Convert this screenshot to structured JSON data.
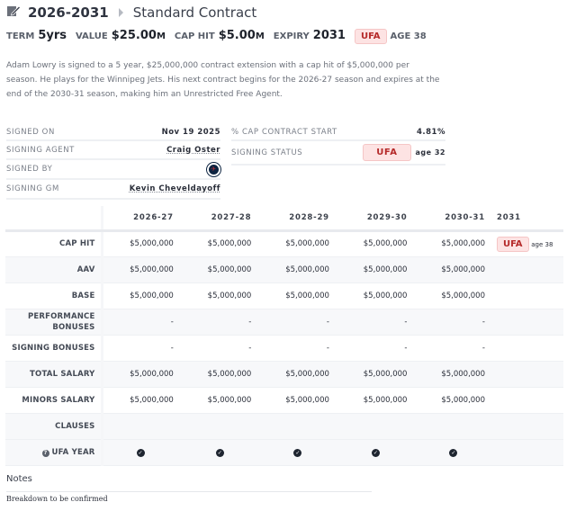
{
  "header": {
    "years": "2026-2031",
    "contract_type": "Standard Contract"
  },
  "summary": {
    "term_label": "TERM",
    "term": "5yrs",
    "value_label": "VALUE",
    "value": "$25.00",
    "value_unit": "M",
    "cap_label": "CAP HIT",
    "cap": "$5.00",
    "cap_unit": "M",
    "expiry_label": "EXPIRY",
    "expiry": "2031",
    "status": "UFA",
    "age": "AGE 38"
  },
  "description": "Adam Lowry is signed to a 5 year, $25,000,000 contract extension with a cap hit of $5,000,000 per season. He plays for the Winnipeg Jets. His next contract begins for the 2026-27 season and expires at the end of the 2030-31 season, making him an Unrestricted Free Agent.",
  "details_left": [
    {
      "label": "SIGNED ON",
      "value": "Nov 19 2025"
    },
    {
      "label": "SIGNING AGENT",
      "value": "Craig Oster"
    },
    {
      "label": "SIGNED BY",
      "value": ""
    },
    {
      "label": "SIGNING GM",
      "value": "Kevin Cheveldayoff"
    }
  ],
  "details_right": {
    "cap_pct_label": "% CAP CONTRACT START",
    "cap_pct": "4.81%",
    "status_label": "SIGNING STATUS",
    "status": "UFA",
    "status_age": "age 32"
  },
  "table": {
    "columns": [
      "2026-27",
      "2027-28",
      "2028-29",
      "2029-30",
      "2030-31",
      "2031"
    ],
    "ufa_badge": "UFA",
    "ufa_age": "age 38",
    "rows": [
      {
        "label": "CAP HIT",
        "values": [
          "$5,000,000",
          "$5,000,000",
          "$5,000,000",
          "$5,000,000",
          "$5,000,000"
        ]
      },
      {
        "label": "AAV",
        "values": [
          "$5,000,000",
          "$5,000,000",
          "$5,000,000",
          "$5,000,000",
          "$5,000,000"
        ]
      },
      {
        "label": "BASE",
        "values": [
          "$5,000,000",
          "$5,000,000",
          "$5,000,000",
          "$5,000,000",
          "$5,000,000"
        ]
      },
      {
        "label": "PERFORMANCE BONUSES",
        "values": [
          "-",
          "-",
          "-",
          "-",
          "-"
        ]
      },
      {
        "label": "SIGNING BONUSES",
        "values": [
          "-",
          "-",
          "-",
          "-",
          "-"
        ]
      },
      {
        "label": "TOTAL SALARY",
        "values": [
          "$5,000,000",
          "$5,000,000",
          "$5,000,000",
          "$5,000,000",
          "$5,000,000"
        ]
      },
      {
        "label": "MINORS SALARY",
        "values": [
          "$5,000,000",
          "$5,000,000",
          "$5,000,000",
          "$5,000,000",
          "$5,000,000"
        ]
      },
      {
        "label": "CLAUSES",
        "values": [
          "",
          "",
          "",
          "",
          ""
        ]
      }
    ],
    "ufa_year_label": "UFA YEAR"
  },
  "notes": {
    "heading": "Notes",
    "text": "Breakdown to be confirmed"
  }
}
